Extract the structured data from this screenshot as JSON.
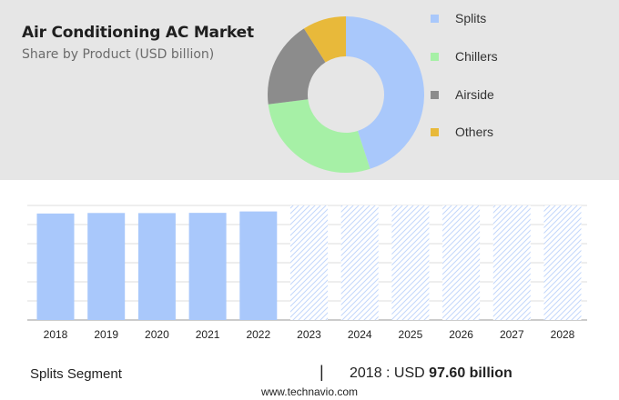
{
  "header": {
    "title": "Air Conditioning AC Market",
    "subtitle": "Share by Product (USD billion)"
  },
  "chart_data": [
    {
      "type": "pie",
      "style": "donut",
      "categories": [
        "Splits",
        "Chillers",
        "Airside",
        "Others"
      ],
      "values": [
        45,
        28,
        18,
        9
      ],
      "colors": [
        "#a9c8fb",
        "#a6f0a6",
        "#8c8c8c",
        "#e8b93a"
      ],
      "legend_position": "right"
    },
    {
      "type": "bar",
      "categories": [
        "2018",
        "2019",
        "2020",
        "2021",
        "2022",
        "2023",
        "2024",
        "2025",
        "2026",
        "2027",
        "2028"
      ],
      "values": [
        97.6,
        98.1,
        98.0,
        98.2,
        99.5,
        null,
        null,
        null,
        null,
        null,
        null
      ],
      "forecast_years": [
        "2023",
        "2024",
        "2025",
        "2026",
        "2027",
        "2028"
      ],
      "series": [
        {
          "values": [
            97.6,
            98.1,
            98.0,
            98.2,
            99.5,
            null,
            null,
            null,
            null,
            null,
            null
          ]
        }
      ],
      "colors": {
        "bar": "#a9c8fb",
        "forecast_hatch": "#c3d7fb"
      },
      "grid": true,
      "y_axis_labels": false
    }
  ],
  "footer": {
    "segment_label": "Splits Segment",
    "divider": "|",
    "year_value_prefix": "2018 : USD",
    "value_text": "97.60 billion",
    "site": "www.technavio.com"
  }
}
